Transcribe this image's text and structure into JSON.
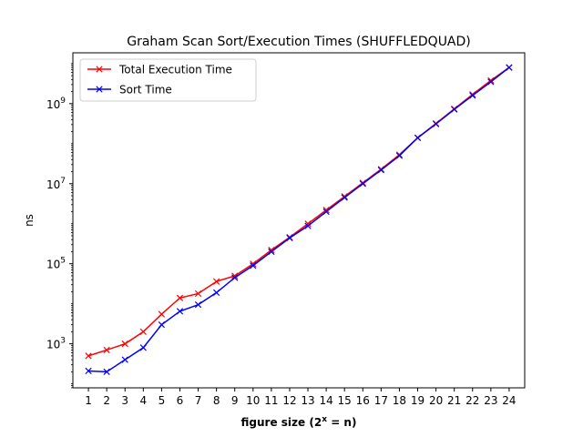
{
  "chart_data": {
    "type": "line",
    "title": "Graham Scan Sort/Execution Times (SHUFFLEDQUAD)",
    "xlabel_prefix": "figure size (",
    "xlabel_base": "2",
    "xlabel_exp": "x",
    "xlabel_suffix": " = n)",
    "ylabel": "ns",
    "yscale": "log",
    "xlim": [
      0.15,
      24.85
    ],
    "ylim_log10": [
      1.9,
      10.27
    ],
    "x": [
      1,
      2,
      3,
      4,
      5,
      6,
      7,
      8,
      9,
      10,
      11,
      12,
      13,
      14,
      15,
      16,
      17,
      18,
      19,
      20,
      21,
      22,
      23,
      24
    ],
    "xticks": [
      "1",
      "2",
      "3",
      "4",
      "5",
      "6",
      "7",
      "8",
      "9",
      "10",
      "11",
      "12",
      "13",
      "14",
      "15",
      "16",
      "17",
      "18",
      "19",
      "20",
      "21",
      "22",
      "23",
      "24"
    ],
    "yticks": [
      {
        "value": 3,
        "base": "10",
        "exp": "3"
      },
      {
        "value": 5,
        "base": "10",
        "exp": "5"
      },
      {
        "value": 7,
        "base": "10",
        "exp": "7"
      },
      {
        "value": 9,
        "base": "10",
        "exp": "9"
      }
    ],
    "legend_position": "upper-left",
    "series": [
      {
        "name": "Total Execution Time",
        "color": "#ff0000",
        "marker": "x",
        "values": [
          500,
          700,
          1000,
          2000,
          5500,
          14000,
          18000,
          36000,
          50000,
          100000,
          220000,
          460000,
          1000000,
          2200000,
          4800000,
          10500000,
          23000000,
          53000000,
          140000000,
          320000000,
          740000000,
          1700000000,
          3800000000,
          8000000000
        ]
      },
      {
        "name": "Sort Time",
        "color": "#0000ff",
        "marker": "x",
        "values": [
          210,
          200,
          400,
          800,
          3000,
          6500,
          9500,
          19000,
          45000,
          90000,
          200000,
          440000,
          880000,
          2000000,
          4500000,
          10000000,
          22000000,
          50000000,
          140000000,
          310000000,
          720000000,
          1600000000,
          3500000000,
          8000000000
        ]
      }
    ]
  }
}
